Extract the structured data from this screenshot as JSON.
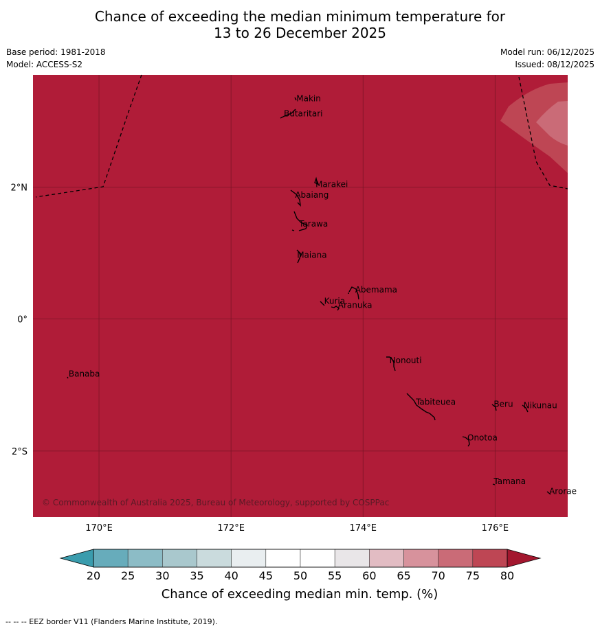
{
  "title_line1": "Chance of exceeding the median minimum temperature for",
  "title_line2": "13 to 26 December 2025",
  "meta": {
    "base_period": "Base period: 1981-2018",
    "model": "Model: ACCESS-S2",
    "model_run": "Model run: 06/12/2025",
    "issued": "Issued: 08/12/2025"
  },
  "copyright": "© Commonwealth of Australia 2025, Bureau of Meteorology, supported by COSPPac",
  "footer": "--  --  -- EEZ border V11 (Flanders Marine Institute, 2019).",
  "map": {
    "lon_range": [
      169,
      177.1
    ],
    "lat_range": [
      -3.0,
      3.7
    ],
    "background_color": "#b01c38",
    "lon_ticks": [
      {
        "value": 170,
        "label": "170°E"
      },
      {
        "value": 172,
        "label": "172°E"
      },
      {
        "value": 174,
        "label": "174°E"
      },
      {
        "value": 176,
        "label": "176°E"
      }
    ],
    "lat_ticks": [
      {
        "value": 2,
        "label": "2°N"
      },
      {
        "value": 0,
        "label": "0°"
      },
      {
        "value": -2,
        "label": "2°S"
      }
    ],
    "places": [
      {
        "name": "Makin",
        "lon": 172.99,
        "lat": 3.3
      },
      {
        "name": "Butaritari",
        "lon": 172.8,
        "lat": 3.07
      },
      {
        "name": "Marakei",
        "lon": 173.28,
        "lat": 2.0
      },
      {
        "name": "Abaiang",
        "lon": 172.97,
        "lat": 1.84
      },
      {
        "name": "Tarawa",
        "lon": 173.03,
        "lat": 1.4
      },
      {
        "name": "Maiana",
        "lon": 173.0,
        "lat": 0.93
      },
      {
        "name": "Abemama",
        "lon": 173.88,
        "lat": 0.4
      },
      {
        "name": "Kuria",
        "lon": 173.41,
        "lat": 0.23
      },
      {
        "name": "Aranuka",
        "lon": 173.62,
        "lat": 0.17
      },
      {
        "name": "Nonouti",
        "lon": 174.4,
        "lat": -0.67
      },
      {
        "name": "Banaba",
        "lon": 169.54,
        "lat": -0.87
      },
      {
        "name": "Beru",
        "lon": 175.98,
        "lat": -1.33
      },
      {
        "name": "Tabiteuea",
        "lon": 174.8,
        "lat": -1.3
      },
      {
        "name": "Nikunau",
        "lon": 176.43,
        "lat": -1.35
      },
      {
        "name": "Onotoa",
        "lon": 175.58,
        "lat": -1.84
      },
      {
        "name": "Tamana",
        "lon": 175.98,
        "lat": -2.5
      },
      {
        "name": "Arorae",
        "lon": 176.82,
        "lat": -2.65
      }
    ]
  },
  "colorbar": {
    "title": "Chance of exceeding median min. temp. (%)",
    "ticks": [
      "20",
      "25",
      "30",
      "35",
      "40",
      "45",
      "50",
      "55",
      "60",
      "65",
      "70",
      "75",
      "80"
    ],
    "low_color": "#3a9cad",
    "high_color": "#a3172f",
    "colors": [
      "#67acbb",
      "#8cbcc6",
      "#a9c8cd",
      "#cadbdd",
      "#e9eef0",
      "#ffffff",
      "#ffffff",
      "#e9e6e8",
      "#e2bcc3",
      "#d7929c",
      "#ca6b77",
      "#be4654"
    ]
  }
}
